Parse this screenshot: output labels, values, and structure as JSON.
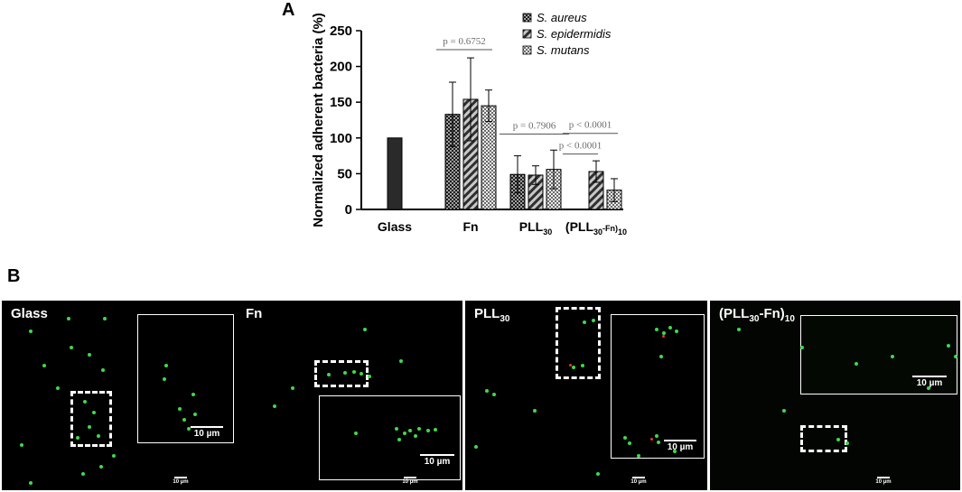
{
  "panel_labels": {
    "a": "A",
    "b": "B"
  },
  "chart_data": {
    "type": "bar",
    "title": "",
    "ylabel": "Normalized adherent bacteria (%)",
    "xlabel": "",
    "ylim": [
      0,
      250
    ],
    "yticks": [
      0,
      50,
      100,
      150,
      200,
      250
    ],
    "categories": [
      "Glass",
      "Fn",
      "PLL30",
      "(PLL30-Fn)10"
    ],
    "series": [
      {
        "name": "S. aureus",
        "values": [
          null,
          133,
          49,
          null
        ],
        "errors": [
          null,
          45,
          26,
          null
        ],
        "pattern": "dots"
      },
      {
        "name": "S. epidermidis",
        "values": [
          100,
          154,
          48,
          53
        ],
        "errors": [
          null,
          58,
          13,
          15
        ],
        "pattern": "hatch"
      },
      {
        "name": "S. mutans",
        "values": [
          null,
          145,
          56,
          27
        ],
        "errors": [
          null,
          22,
          27,
          16
        ],
        "pattern": "check"
      }
    ],
    "legend_position": "top-right",
    "annotations": [
      {
        "text": "p = 0.6752",
        "category": 1,
        "value": 231
      },
      {
        "text": "p = 0.7906",
        "category": 2,
        "value": 113
      },
      {
        "text": "p < 0.0001",
        "category": 3,
        "value": 114
      },
      {
        "text": "p < 0.0001",
        "category": 3,
        "value": 85
      }
    ]
  },
  "micrographs": [
    {
      "label": "Glass",
      "inset_scale": "10 µm",
      "main_scale": "10 µm"
    },
    {
      "label": "Fn",
      "inset_scale": "10 µm",
      "main_scale": "10 µm"
    },
    {
      "label": "PLL30",
      "inset_scale": "10 µm",
      "main_scale": "10 µm"
    },
    {
      "label": "(PLL30-Fn)10",
      "inset_scale": "10 µm",
      "main_scale": "10 µm"
    }
  ],
  "colors": {
    "bar_fill": "#2a2a2a",
    "cell_green": "#3fd94a",
    "cell_red": "#e23a2a",
    "axis": "#000000"
  }
}
